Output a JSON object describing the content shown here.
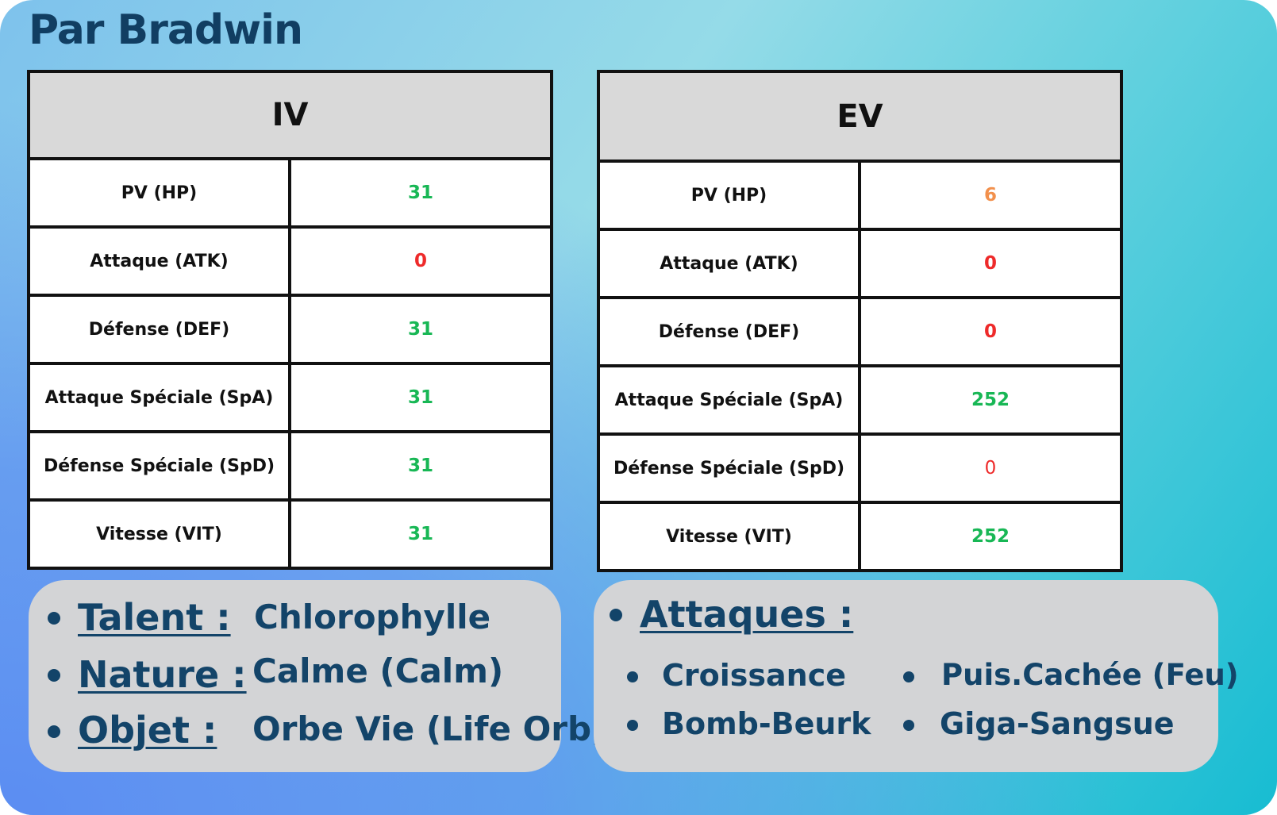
{
  "title": "Par Bradwin",
  "iv_table": {
    "header": "IV",
    "rows": [
      {
        "stat": "PV (HP)",
        "value": "31",
        "color": "#18b755"
      },
      {
        "stat": "Attaque (ATK)",
        "value": "0",
        "color": "#ee2a2a"
      },
      {
        "stat": "Défense (DEF)",
        "value": "31",
        "color": "#18b755"
      },
      {
        "stat": "Attaque Spéciale (SpA)",
        "value": "31",
        "color": "#18b755"
      },
      {
        "stat": "Défense Spéciale (SpD)",
        "value": "31",
        "color": "#18b755"
      },
      {
        "stat": "Vitesse (VIT)",
        "value": "31",
        "color": "#18b755"
      }
    ]
  },
  "ev_table": {
    "header": "EV",
    "rows": [
      {
        "stat": "PV (HP)",
        "value": "6",
        "color": "#f2904c"
      },
      {
        "stat": "Attaque (ATK)",
        "value": "0",
        "color": "#ee2a2a"
      },
      {
        "stat": "Défense (DEF)",
        "value": "0",
        "color": "#ee2a2a"
      },
      {
        "stat": "Attaque Spéciale (SpA)",
        "value": "252",
        "color": "#18b755"
      },
      {
        "stat": "Défense Spéciale (SpD)",
        "value": "0",
        "color": "#ee2a2a"
      },
      {
        "stat": "Vitesse (VIT)",
        "value": "252",
        "color": "#18b755"
      }
    ]
  },
  "info": {
    "talent_label": "Talent :",
    "talent_value": "Chlorophylle",
    "nature_label": "Nature :",
    "nature_value": "Calme (Calm)",
    "objet_label": "Objet :",
    "objet_value": "Orbe Vie (Life Orb)"
  },
  "attacks": {
    "label": "Attaques :",
    "moves": [
      "Croissance",
      "Puis.Cachée (Feu)",
      "Bomb-Beurk",
      "Giga-Sangsue"
    ]
  }
}
